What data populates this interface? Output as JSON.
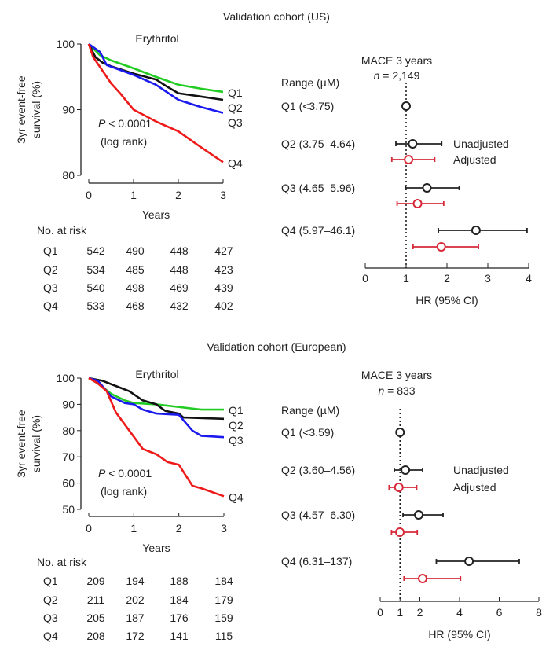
{
  "chart_data": [
    {
      "panel": "top",
      "heading": "Validation cohort (US)",
      "km": {
        "type": "line",
        "title": "Erythritol",
        "xlabel": "Years",
        "ylabel_line1": "3yr event-free",
        "ylabel_line2": "survival (%)",
        "xlim": [
          0,
          3
        ],
        "ylim": [
          80,
          100
        ],
        "xticks": [
          0,
          1,
          2,
          3
        ],
        "yticks": [
          80,
          90,
          100
        ],
        "annotation_p": "P",
        "annotation_rest": " < 0.0001",
        "annotation2": "(log rank)",
        "series": [
          {
            "name": "Q1",
            "color": "#22cc22",
            "x": [
              0,
              0.25,
              0.5,
              1,
              1.5,
              2,
              2.5,
              3
            ],
            "y": [
              100,
              98.3,
              97.5,
              96.3,
              95,
              93.8,
              93.2,
              92.7
            ]
          },
          {
            "name": "Q2",
            "color": "#111111",
            "x": [
              0,
              0.15,
              0.3,
              0.5,
              1,
              1.5,
              1.75,
              2,
              2.5,
              3
            ],
            "y": [
              100,
              98,
              97.2,
              96.6,
              95.5,
              94.6,
              93.5,
              92.5,
              92,
              91.5
            ]
          },
          {
            "name": "Q3",
            "color": "#1a1aee",
            "x": [
              0,
              0.25,
              0.4,
              0.6,
              1,
              1.5,
              2,
              2.5,
              3
            ],
            "y": [
              100,
              98.8,
              96.8,
              96.3,
              95.3,
              93.8,
              91.5,
              90.4,
              89.5
            ]
          },
          {
            "name": "Q4",
            "color": "#ee1a1a",
            "x": [
              0,
              0.1,
              0.3,
              0.5,
              0.7,
              1,
              1.5,
              2,
              2.5,
              3
            ],
            "y": [
              100,
              98,
              96,
              94,
              92.5,
              90,
              88.2,
              86.7,
              84.3,
              82
            ]
          }
        ]
      },
      "risk_table": {
        "title": "No. at risk",
        "rows": [
          {
            "label": "Q1",
            "values": [
              "542",
              "490",
              "448",
              "427"
            ]
          },
          {
            "label": "Q2",
            "values": [
              "534",
              "485",
              "448",
              "423"
            ]
          },
          {
            "label": "Q3",
            "values": [
              "540",
              "498",
              "469",
              "439"
            ]
          },
          {
            "label": "Q4",
            "values": [
              "533",
              "468",
              "432",
              "402"
            ]
          }
        ]
      },
      "forest": {
        "type": "scatter",
        "title": "MACE 3 years",
        "n_label": "n",
        "n_value": " = 2,149",
        "range_header": "Range (µM)",
        "xlabel": "HR (95% CI)",
        "xlim": [
          0,
          4
        ],
        "xticks": [
          0,
          1,
          2,
          3,
          4
        ],
        "legend_unadjusted": "Unadjusted",
        "legend_adjusted": "Adjusted",
        "rows": [
          {
            "label": "Q1 (<3.75)",
            "unadjusted": [
              1,
              1,
              1
            ],
            "adjusted": null
          },
          {
            "label": "Q2 (3.75–4.64)",
            "unadjusted": [
              1.16,
              0.75,
              1.87
            ],
            "adjusted": [
              1.06,
              0.65,
              1.7
            ]
          },
          {
            "label": "Q3 (4.65–5.96)",
            "unadjusted": [
              1.51,
              0.99,
              2.3
            ],
            "adjusted": [
              1.28,
              0.78,
              1.92
            ]
          },
          {
            "label": "Q4 (5.97–46.1)",
            "unadjusted": [
              2.71,
              1.79,
              3.96
            ],
            "adjusted": [
              1.86,
              1.17,
              2.77
            ]
          }
        ]
      }
    },
    {
      "panel": "bottom",
      "heading": "Validation cohort (European)",
      "km": {
        "type": "line",
        "title": "Erythritol",
        "xlabel": "Years",
        "ylabel_line1": "3yr event-free",
        "ylabel_line2": "survival (%)",
        "xlim": [
          0,
          3
        ],
        "ylim": [
          50,
          100
        ],
        "xticks": [
          0,
          1,
          2,
          3
        ],
        "yticks": [
          50,
          60,
          70,
          80,
          90,
          100
        ],
        "annotation_p": "P",
        "annotation_rest": " < 0.0001",
        "annotation2": "(log rank)",
        "series": [
          {
            "name": "Q1",
            "color": "#22cc22",
            "x": [
              0,
              0.2,
              0.5,
              0.8,
              1,
              1.5,
              2,
              2.5,
              3
            ],
            "y": [
              100,
              98,
              94,
              91.5,
              90.5,
              90,
              89,
              88,
              88
            ]
          },
          {
            "name": "Q2",
            "color": "#111111",
            "x": [
              0,
              0.3,
              0.6,
              0.9,
              1.2,
              1.5,
              1.7,
              2,
              2.1,
              3
            ],
            "y": [
              100,
              99,
              97,
              95,
              91.5,
              90,
              87.5,
              86.5,
              85,
              84.5
            ]
          },
          {
            "name": "Q3",
            "color": "#1a1aee",
            "x": [
              0,
              0.2,
              0.5,
              0.8,
              1,
              1.2,
              1.5,
              2,
              2.1,
              2.3,
              2.5,
              3
            ],
            "y": [
              100,
              99,
              93,
              90.5,
              90,
              88,
              86.5,
              86,
              84,
              80,
              78,
              77.5
            ]
          },
          {
            "name": "Q4",
            "color": "#ee1a1a",
            "x": [
              0,
              0.2,
              0.4,
              0.6,
              0.9,
              1.2,
              1.5,
              1.75,
              2,
              2.3,
              2.5,
              3
            ],
            "y": [
              100,
              98,
              95,
              87,
              80,
              73,
              71,
              68,
              67,
              59,
              58,
              55
            ]
          }
        ]
      },
      "risk_table": {
        "title": "No. at risk",
        "rows": [
          {
            "label": "Q1",
            "values": [
              "209",
              "194",
              "188",
              "184"
            ]
          },
          {
            "label": "Q2",
            "values": [
              "211",
              "202",
              "184",
              "179"
            ]
          },
          {
            "label": "Q3",
            "values": [
              "205",
              "187",
              "176",
              "159"
            ]
          },
          {
            "label": "Q4",
            "values": [
              "208",
              "172",
              "141",
              "115"
            ]
          }
        ]
      },
      "forest": {
        "type": "scatter",
        "title": "MACE 3 years",
        "n_label": "n",
        "n_value": " = 833",
        "range_header": "Range (µM)",
        "xlabel": "HR (95% CI)",
        "xlim": [
          0,
          8
        ],
        "xticks": [
          0,
          1,
          2,
          4,
          6,
          8
        ],
        "legend_unadjusted": "Unadjusted",
        "legend_adjusted": "Adjusted",
        "rows": [
          {
            "label": "Q1 (<3.59)",
            "unadjusted": [
              1,
              1,
              1
            ],
            "adjusted": null
          },
          {
            "label": "Q2 (3.60–4.56)",
            "unadjusted": [
              1.27,
              0.71,
              2.14
            ],
            "adjusted": [
              0.94,
              0.45,
              1.84
            ]
          },
          {
            "label": "Q3 (4.57–6.30)",
            "unadjusted": [
              1.94,
              1.15,
              3.17
            ],
            "adjusted": [
              0.99,
              0.57,
              1.87
            ]
          },
          {
            "label": "Q4 (6.31–137)",
            "unadjusted": [
              4.48,
              2.83,
              7.01
            ],
            "adjusted": [
              2.14,
              1.2,
              4.05
            ]
          }
        ]
      }
    }
  ]
}
